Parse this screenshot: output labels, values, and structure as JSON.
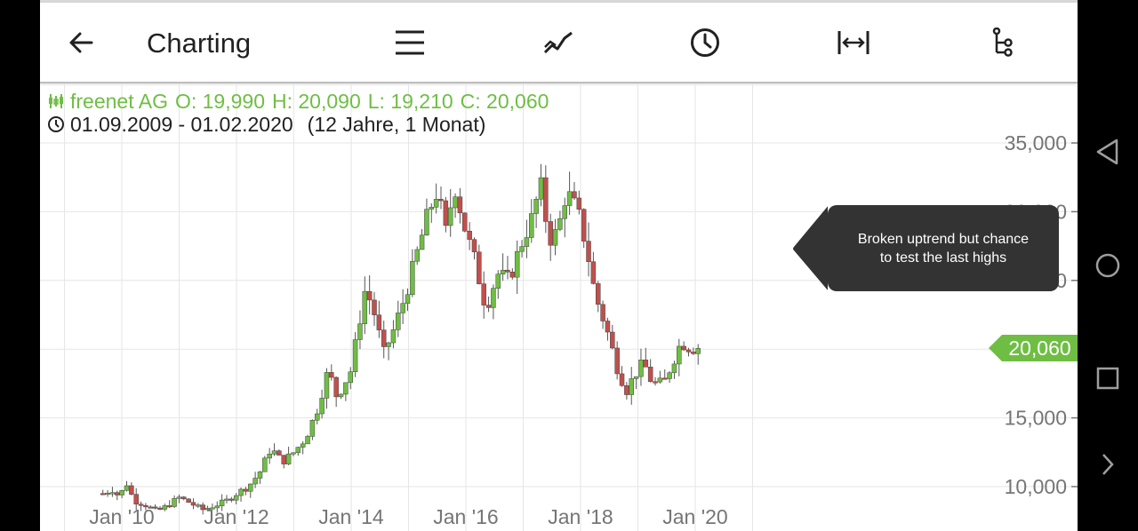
{
  "toolbar": {
    "back_icon": "arrow-left-icon",
    "title": "Charting",
    "icons": [
      "menu-icon",
      "line-chart-icon",
      "clock-icon",
      "width-expand-icon",
      "hierarchy-icon"
    ]
  },
  "info": {
    "instrument": "freenet AG",
    "open": "O: 19,990",
    "high": "H: 20,090",
    "low": "L: 19,210",
    "close": "C: 20,060",
    "date_range": "01.09.2009 - 01.02.2020",
    "duration": "(12 Jahre, 1 Monat)"
  },
  "price_tag": "20,060",
  "tooltip": {
    "line1": "Broken uptrend but chance",
    "line2": "to test the last highs"
  },
  "colors": {
    "up": "#6fbe44",
    "down": "#c0504d",
    "grid": "#e6e6e6",
    "axis_text": "#757575"
  },
  "chart_data": {
    "type": "candlestick",
    "title": "",
    "xlabel": "",
    "ylabel": "",
    "ylim": [
      8000,
      37500
    ],
    "yticks": [
      "10,000",
      "15,000",
      "20,000",
      "25,000",
      "30,000",
      "35,000"
    ],
    "ytick_values": [
      10000,
      15000,
      20000,
      25000,
      30000,
      35000
    ],
    "xticks": [
      "Jan '10",
      "Jan '12",
      "Jan '14",
      "Jan '16",
      "Jan '18",
      "Jan '20"
    ],
    "xtick_values": [
      2010.0,
      2012.0,
      2014.0,
      2016.0,
      2018.0,
      2020.0
    ],
    "xlim": [
      2008.6,
      2024.0
    ],
    "grid": true,
    "last_close": 20060,
    "points": [
      [
        2009.67,
        9500
      ],
      [
        2009.83,
        9800
      ],
      [
        2009.95,
        9300
      ],
      [
        2010.1,
        10300
      ],
      [
        2010.2,
        9000
      ],
      [
        2010.4,
        8700
      ],
      [
        2010.6,
        8200
      ],
      [
        2010.75,
        8500
      ],
      [
        2011.0,
        9200
      ],
      [
        2011.2,
        8800
      ],
      [
        2011.4,
        8300
      ],
      [
        2011.6,
        8600
      ],
      [
        2011.8,
        8900
      ],
      [
        2012.0,
        9500
      ],
      [
        2012.2,
        10000
      ],
      [
        2012.4,
        11000
      ],
      [
        2012.6,
        12800
      ],
      [
        2012.8,
        11800
      ],
      [
        2013.0,
        12500
      ],
      [
        2013.2,
        13500
      ],
      [
        2013.4,
        15500
      ],
      [
        2013.6,
        18500
      ],
      [
        2013.75,
        16500
      ],
      [
        2014.0,
        18500
      ],
      [
        2014.1,
        21000
      ],
      [
        2014.25,
        24500
      ],
      [
        2014.45,
        22000
      ],
      [
        2014.55,
        19500
      ],
      [
        2014.75,
        21500
      ],
      [
        2014.95,
        24000
      ],
      [
        2015.15,
        27000
      ],
      [
        2015.35,
        30000
      ],
      [
        2015.5,
        31500
      ],
      [
        2015.65,
        28500
      ],
      [
        2015.8,
        32000
      ],
      [
        2016.0,
        28500
      ],
      [
        2016.15,
        26500
      ],
      [
        2016.35,
        23000
      ],
      [
        2016.55,
        25500
      ],
      [
        2016.75,
        25000
      ],
      [
        2016.95,
        27500
      ],
      [
        2017.15,
        29500
      ],
      [
        2017.3,
        32000
      ],
      [
        2017.45,
        28000
      ],
      [
        2017.6,
        28500
      ],
      [
        2017.75,
        31500
      ],
      [
        2017.95,
        30000
      ],
      [
        2018.1,
        27500
      ],
      [
        2018.25,
        24000
      ],
      [
        2018.45,
        21500
      ],
      [
        2018.65,
        18500
      ],
      [
        2018.8,
        17000
      ],
      [
        2018.95,
        18200
      ],
      [
        2019.1,
        19000
      ],
      [
        2019.25,
        17500
      ],
      [
        2019.45,
        17500
      ],
      [
        2019.6,
        19000
      ],
      [
        2019.75,
        20500
      ],
      [
        2019.92,
        20060
      ]
    ]
  },
  "navbar": [
    "back-triangle-icon",
    "home-circle-icon",
    "recents-square-icon",
    "chevron-right-icon"
  ]
}
